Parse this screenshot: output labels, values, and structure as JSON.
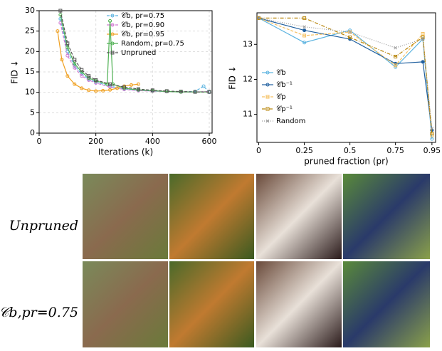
{
  "chart_data": [
    {
      "type": "line",
      "xlabel": "Iterations (k)",
      "ylabel": "FID ↓",
      "xlim": [
        0,
        610
      ],
      "ylim": [
        0,
        30
      ],
      "xticks": [
        0,
        200,
        400,
        600
      ],
      "yticks": [
        0,
        5,
        10,
        15,
        20,
        25,
        30
      ],
      "grid": true,
      "legend": "upper right",
      "series": [
        {
          "name": "𝒞b, pr=0.75",
          "color": "#5bb3e0",
          "linestyle": "dashed",
          "marker": "circle",
          "x": [
            75,
            100,
            125,
            150,
            175,
            200,
            250,
            300,
            350,
            400,
            450,
            500,
            550,
            580,
            600
          ],
          "values": [
            28,
            20,
            16.5,
            14.5,
            13.2,
            12.5,
            11.5,
            10.8,
            10.5,
            10.3,
            10.2,
            10.1,
            10.2,
            11.5,
            10
          ]
        },
        {
          "name": "𝒞b, pr=0.90",
          "color": "#d07ad0",
          "linestyle": "dashed",
          "marker": "circle",
          "x": [
            75,
            100,
            125,
            150,
            175,
            200,
            250,
            300,
            350,
            400,
            450,
            500,
            550,
            600
          ],
          "values": [
            27,
            19,
            16,
            14,
            13,
            12.3,
            11.3,
            10.7,
            10.4,
            10.3,
            10.2,
            10.1,
            10.1,
            10.2
          ]
        },
        {
          "name": "𝒞b, pr=0.95",
          "color": "#f0a020",
          "linestyle": "solid",
          "marker": "circle",
          "x": [
            65,
            80,
            100,
            125,
            150,
            175,
            200,
            225,
            250,
            275,
            300,
            325,
            350
          ],
          "values": [
            25,
            18,
            14,
            12,
            11,
            10.5,
            10.3,
            10.4,
            10.6,
            11,
            11.5,
            11.8,
            12
          ]
        },
        {
          "name": "Random, pr=0.75",
          "color": "#4caf50",
          "linestyle": "solid",
          "marker": "circle",
          "x": [
            75,
            100,
            125,
            150,
            175,
            200,
            240,
            250,
            260,
            300,
            350,
            400,
            450,
            500,
            550,
            600
          ],
          "values": [
            29,
            21,
            17,
            15,
            13.5,
            12.8,
            12,
            27.5,
            12,
            11,
            10.6,
            10.4,
            10.2,
            10.1,
            10.1,
            10.1
          ]
        },
        {
          "name": "Unpruned",
          "color": "#555555",
          "linestyle": "dashed",
          "marker": "square",
          "x": [
            75,
            100,
            125,
            150,
            175,
            200,
            250,
            300,
            350,
            400,
            450,
            500,
            550,
            600
          ],
          "values": [
            30,
            22,
            18,
            15.5,
            14,
            13,
            12,
            11.3,
            10.8,
            10.5,
            10.3,
            10.2,
            10.1,
            10.1
          ]
        }
      ]
    },
    {
      "type": "line",
      "xlabel": "pruned fraction (pr)",
      "ylabel": "FID ↓",
      "xlim": [
        -0.01,
        0.97
      ],
      "ylim": [
        10.2,
        13.9
      ],
      "xticks": [
        0,
        0.25,
        0.5,
        0.75,
        0.95
      ],
      "yticks": [
        11,
        12,
        13
      ],
      "grid": false,
      "legend": "lower left",
      "series": [
        {
          "name": "𝒞b",
          "color": "#5bb3e0",
          "linestyle": "solid",
          "marker": "circle",
          "x": [
            0,
            0.25,
            0.5,
            0.75,
            0.9,
            0.95
          ],
          "values": [
            13.75,
            13.05,
            13.4,
            12.35,
            13.15,
            10.3
          ]
        },
        {
          "name": "𝒞b⁻¹",
          "color": "#1f5f9f",
          "linestyle": "solid",
          "marker": "circle",
          "x": [
            0,
            0.25,
            0.5,
            0.75,
            0.9,
            0.95
          ],
          "values": [
            13.75,
            13.4,
            13.15,
            12.45,
            12.5,
            10.55
          ]
        },
        {
          "name": "𝒞p",
          "color": "#f5c060",
          "linestyle": "dashed",
          "marker": "square",
          "x": [
            0,
            0.25,
            0.5,
            0.75,
            0.9,
            0.95
          ],
          "values": [
            13.75,
            13.25,
            13.35,
            12.4,
            13.3,
            10.4
          ]
        },
        {
          "name": "𝒞p⁻¹",
          "color": "#b8860b",
          "linestyle": "dashdot",
          "marker": "square",
          "x": [
            0,
            0.25,
            0.5,
            0.75,
            0.9,
            0.95
          ],
          "values": [
            13.75,
            13.75,
            13.2,
            12.65,
            13.2,
            10.45
          ]
        },
        {
          "name": "Random",
          "color": "#999999",
          "linestyle": "dotted",
          "marker": "x",
          "x": [
            0,
            0.25,
            0.5,
            0.75,
            0.9,
            0.95
          ],
          "values": [
            13.75,
            13.5,
            13.35,
            12.9,
            13.15,
            10.6
          ]
        }
      ]
    }
  ],
  "grid": {
    "rows": [
      {
        "label": "Unpruned"
      },
      {
        "label": "𝒞b,pr=0.75"
      }
    ]
  }
}
